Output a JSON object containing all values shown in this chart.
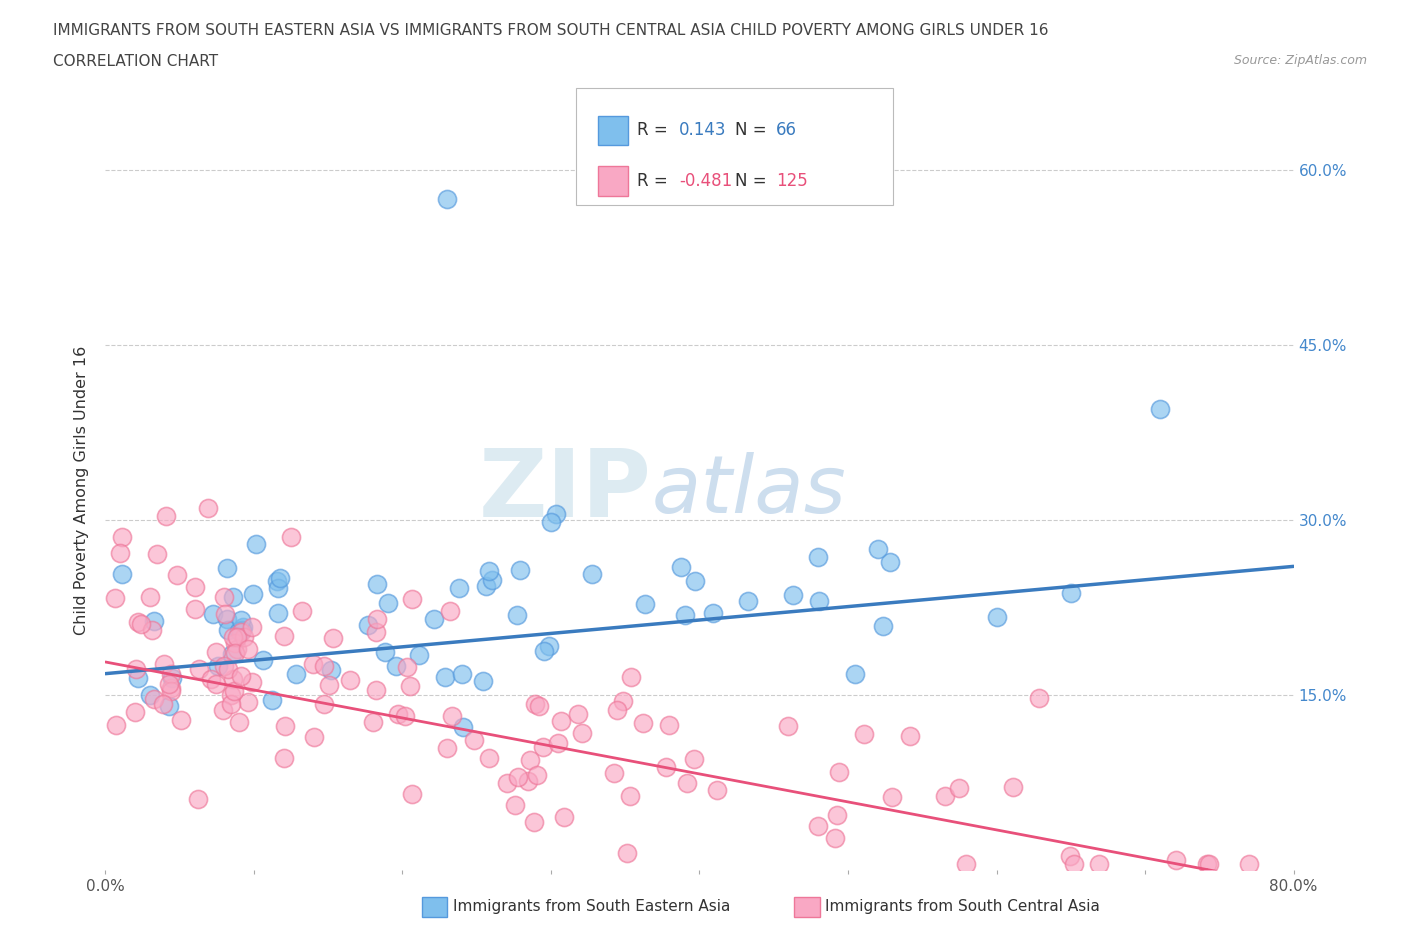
{
  "title_line1": "IMMIGRANTS FROM SOUTH EASTERN ASIA VS IMMIGRANTS FROM SOUTH CENTRAL ASIA CHILD POVERTY AMONG GIRLS UNDER 16",
  "title_line2": "CORRELATION CHART",
  "source_text": "Source: ZipAtlas.com",
  "ylabel": "Child Poverty Among Girls Under 16",
  "xlim": [
    0.0,
    0.8
  ],
  "ylim": [
    0.0,
    0.65
  ],
  "ytick_positions": [
    0.15,
    0.3,
    0.45,
    0.6
  ],
  "ytick_labels": [
    "15.0%",
    "30.0%",
    "45.0%",
    "60.0%"
  ],
  "blue_R": 0.143,
  "blue_N": 66,
  "pink_R": -0.481,
  "pink_N": 125,
  "blue_color": "#7fbfed",
  "pink_color": "#f9a8c4",
  "blue_line_color": "#3a7bbf",
  "pink_line_color": "#e8507a",
  "blue_edge_color": "#5599dd",
  "pink_edge_color": "#ee7799",
  "watermark_zip": "ZIP",
  "watermark_atlas": "atlas",
  "legend_label_blue": "Immigrants from South Eastern Asia",
  "legend_label_pink": "Immigrants from South Central Asia",
  "blue_tick_color": "#4488cc",
  "title_color": "#444444"
}
